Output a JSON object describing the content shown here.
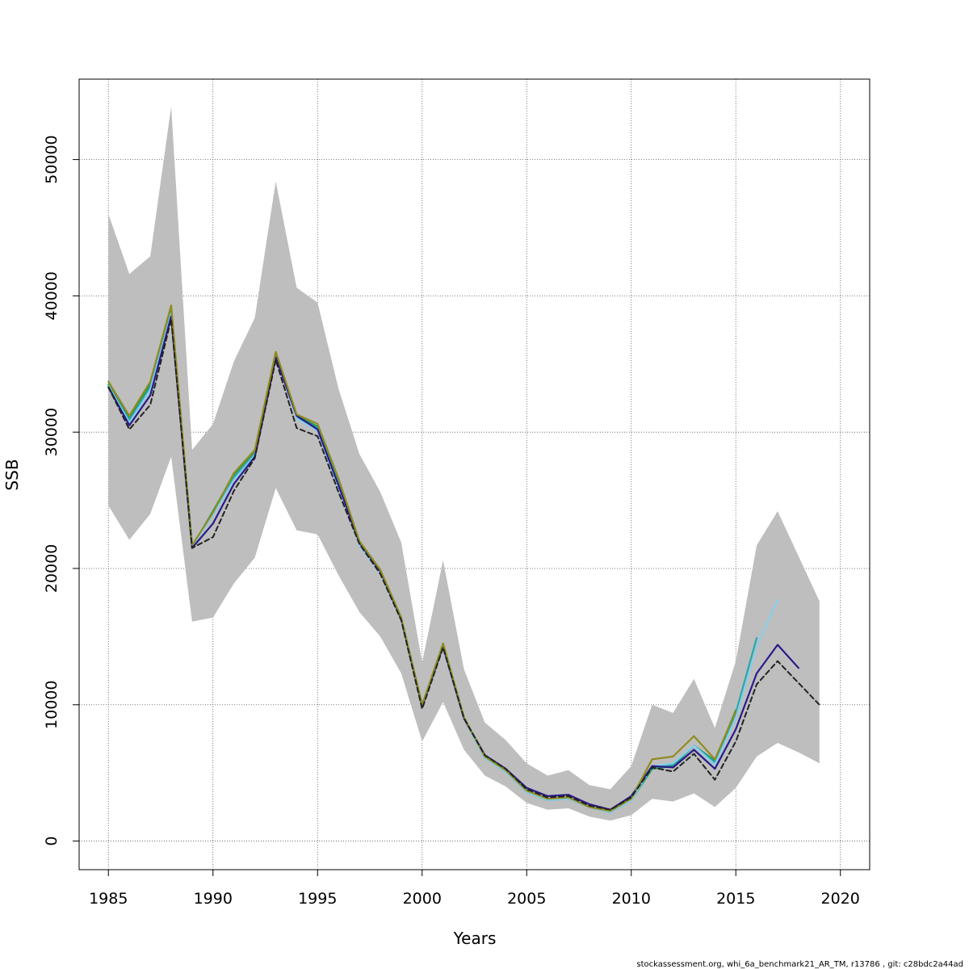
{
  "chart_data": {
    "type": "line",
    "title": "",
    "xlabel": "Years",
    "ylabel": "SSB",
    "xlim": [
      1983.6,
      2021.4
    ],
    "ylim": [
      -2100,
      55900
    ],
    "xticks": [
      1985,
      1990,
      1995,
      2000,
      2005,
      2010,
      2015,
      2020
    ],
    "yticks": [
      0,
      10000,
      20000,
      30000,
      40000,
      50000
    ],
    "grid": true,
    "legend": "none",
    "confidence_band": {
      "color": "#bebebe",
      "x": [
        1985,
        1986,
        1987,
        1988,
        1989,
        1990,
        1991,
        1992,
        1993,
        1994,
        1995,
        1996,
        1997,
        1998,
        1999,
        2000,
        2001,
        2002,
        2003,
        2004,
        2005,
        2006,
        2007,
        2008,
        2009,
        2010,
        2011,
        2012,
        2013,
        2014,
        2015,
        2016,
        2017,
        2018,
        2019
      ],
      "upper": [
        46000,
        41600,
        42900,
        53900,
        28700,
        30600,
        35200,
        38400,
        48400,
        40600,
        39500,
        33200,
        28400,
        25600,
        21900,
        13100,
        20600,
        12600,
        8700,
        7400,
        5700,
        4800,
        5200,
        4100,
        3800,
        5500,
        10000,
        9400,
        11900,
        8300,
        13200,
        21700,
        24200,
        20900,
        17600
      ],
      "lower": [
        24600,
        22100,
        24000,
        28200,
        16100,
        16400,
        18900,
        20800,
        25900,
        22800,
        22500,
        19500,
        16800,
        15000,
        12300,
        7300,
        10200,
        6700,
        4800,
        4000,
        2800,
        2300,
        2400,
        1800,
        1500,
        1900,
        3100,
        2900,
        3500,
        2500,
        3900,
        6200,
        7200,
        6500,
        5700
      ]
    },
    "series": [
      {
        "color": "#1a9850",
        "x": [
          1985,
          1986,
          1987,
          1988,
          1989,
          1990,
          1991,
          1992,
          1993,
          1994,
          1995,
          1996,
          1997,
          1998,
          1999,
          2000,
          2001,
          2002,
          2003,
          2004,
          2005,
          2006,
          2007,
          2008,
          2009,
          2010,
          2011,
          2012,
          2013,
          2014,
          2015
        ],
        "values": [
          33500,
          31000,
          33500,
          39000,
          21600,
          24200,
          26900,
          28600,
          35800,
          31200,
          30400,
          26400,
          21900,
          19800,
          16300,
          10000,
          14300,
          9000,
          6100,
          5100,
          3600,
          3000,
          3100,
          2500,
          2100,
          3000,
          5300,
          5500,
          7000,
          5900,
          9600
        ]
      },
      {
        "color": "#2ca6a4",
        "x": [
          1985,
          1986,
          1987,
          1988,
          1989,
          1990,
          1991,
          1992,
          1993,
          1994,
          1995,
          1996,
          1997,
          1998,
          1999,
          2000,
          2001,
          2002,
          2003,
          2004,
          2005,
          2006,
          2007,
          2008,
          2009,
          2010,
          2011,
          2012,
          2013,
          2014,
          2015,
          2016
        ],
        "values": [
          33400,
          30900,
          33300,
          38900,
          21600,
          24000,
          26700,
          28400,
          35600,
          31100,
          30300,
          26200,
          21800,
          19700,
          16300,
          10000,
          14200,
          9000,
          6100,
          5100,
          3600,
          3000,
          3100,
          2500,
          2100,
          3000,
          5400,
          5600,
          7000,
          5800,
          9400,
          14900
        ]
      },
      {
        "color": "#87ceeb",
        "x": [
          1985,
          1986,
          1987,
          1988,
          1989,
          1990,
          1991,
          1992,
          1993,
          1994,
          1995,
          1996,
          1997,
          1998,
          1999,
          2000,
          2001,
          2002,
          2003,
          2004,
          2005,
          2006,
          2007,
          2008,
          2009,
          2010,
          2011,
          2012,
          2013,
          2014,
          2015,
          2016,
          2017
        ],
        "values": [
          33400,
          30700,
          33100,
          38700,
          21600,
          23900,
          26500,
          28300,
          35600,
          31000,
          30100,
          26000,
          21700,
          19600,
          16200,
          9900,
          14200,
          9000,
          6100,
          5100,
          3600,
          3000,
          3100,
          2500,
          2100,
          3000,
          5500,
          5700,
          7000,
          5600,
          9000,
          14300,
          17700
        ]
      },
      {
        "color": "#2a1a8a",
        "x": [
          1985,
          1986,
          1987,
          1988,
          1989,
          1990,
          1991,
          1992,
          1993,
          1994,
          1995,
          1996,
          1997,
          1998,
          1999,
          2000,
          2001,
          2002,
          2003,
          2004,
          2005,
          2006,
          2007,
          2008,
          2009,
          2010,
          2011,
          2012,
          2013,
          2014,
          2015,
          2016,
          2017,
          2018
        ],
        "values": [
          33300,
          30500,
          32700,
          38500,
          21500,
          23300,
          26200,
          28200,
          35500,
          31200,
          30200,
          26100,
          21900,
          19800,
          16300,
          9900,
          14300,
          9000,
          6300,
          5300,
          3900,
          3300,
          3400,
          2700,
          2300,
          3300,
          5500,
          5400,
          6700,
          5300,
          8200,
          12300,
          14400,
          12700
        ]
      },
      {
        "color": "#8f8c1e",
        "x": [
          1985,
          1986,
          1987,
          1988,
          1989,
          1990,
          1991,
          1992,
          1993,
          1994,
          1995,
          1996,
          1997,
          1998,
          1999,
          2000,
          2001,
          2002,
          2003,
          2004,
          2005,
          2006,
          2007,
          2008,
          2009,
          2010,
          2011,
          2012,
          2013,
          2014,
          2015
        ],
        "values": [
          33700,
          31200,
          33700,
          39300,
          21700,
          24100,
          27000,
          28700,
          35900,
          31300,
          30600,
          26600,
          22000,
          19900,
          16400,
          10000,
          14500,
          9100,
          6200,
          5200,
          3700,
          3100,
          3200,
          2500,
          2200,
          3100,
          6000,
          6200,
          7700,
          6000,
          9500
        ]
      },
      {
        "color": "#222222",
        "dashed": true,
        "x": [
          1985,
          1986,
          1987,
          1988,
          1989,
          1990,
          1991,
          1992,
          1993,
          1994,
          1995,
          1996,
          1997,
          1998,
          1999,
          2000,
          2001,
          2002,
          2003,
          2004,
          2005,
          2006,
          2007,
          2008,
          2009,
          2010,
          2011,
          2012,
          2013,
          2014,
          2015,
          2016,
          2017,
          2018,
          2019
        ],
        "values": [
          33300,
          30200,
          32000,
          38300,
          21500,
          22300,
          25700,
          28100,
          35300,
          30300,
          29700,
          25600,
          21800,
          19600,
          16200,
          9700,
          14200,
          9000,
          6300,
          5300,
          3800,
          3200,
          3300,
          2600,
          2300,
          3200,
          5400,
          5100,
          6400,
          4500,
          7300,
          11500,
          13200,
          11600,
          10000
        ]
      }
    ],
    "footer": "stockassessment.org, whi_6a_benchmark21_AR_TM, r13786 , git: c28bdc2a44ad"
  }
}
